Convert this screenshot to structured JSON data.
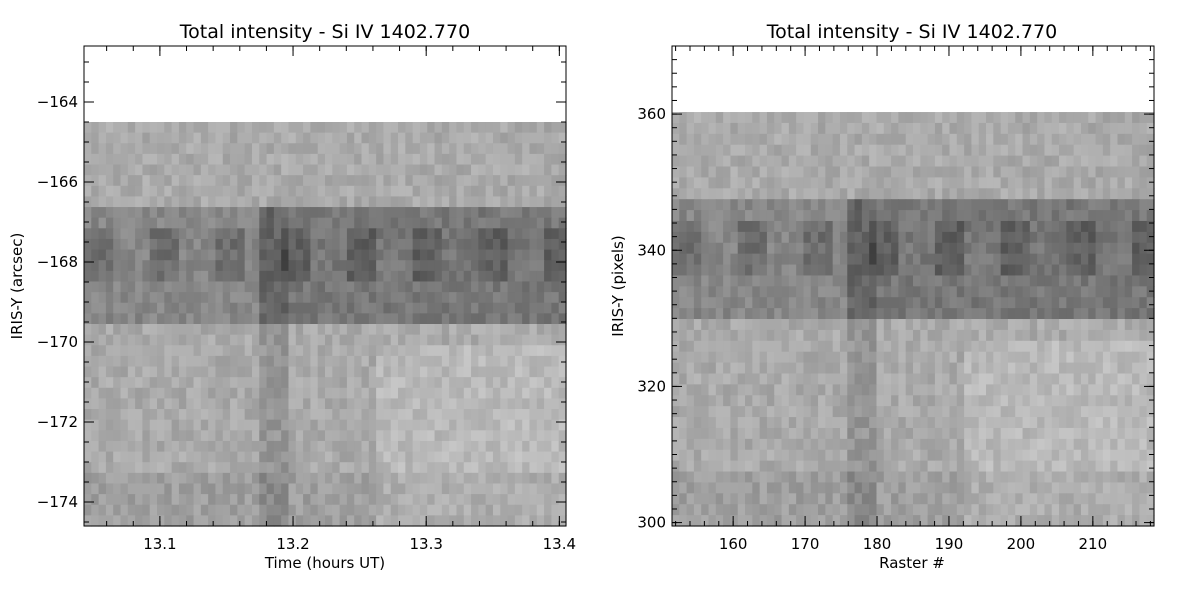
{
  "chart_data": [
    {
      "type": "heatmap",
      "title": "Total intensity - Si IV 1402.770",
      "xlabel": "Time (hours UT)",
      "ylabel": "IRIS-Y (arcsec)",
      "xlim": [
        13.043,
        13.405
      ],
      "ylim": [
        -174.6,
        -162.6
      ],
      "data_ylim": [
        -174.6,
        -164.5
      ],
      "xticks": [
        {
          "v": 13.1,
          "label": "13.1"
        },
        {
          "v": 13.2,
          "label": "13.2"
        },
        {
          "v": 13.3,
          "label": "13.3"
        },
        {
          "v": 13.4,
          "label": "13.4"
        }
      ],
      "yticks": [
        {
          "v": -164,
          "label": "−164"
        },
        {
          "v": -166,
          "label": "−166"
        },
        {
          "v": -168,
          "label": "−168"
        },
        {
          "v": -170,
          "label": "−170"
        },
        {
          "v": -172,
          "label": "−172"
        },
        {
          "v": -174,
          "label": "−174"
        }
      ],
      "colormap": "grayscale"
    },
    {
      "type": "heatmap",
      "title": "Total intensity - Si IV 1402.770",
      "xlabel": "Raster #",
      "ylabel": "IRIS-Y (pixels)",
      "xlim": [
        151.5,
        218.5
      ],
      "ylim": [
        299.5,
        370.0
      ],
      "data_ylim": [
        299.5,
        360.3
      ],
      "xticks": [
        {
          "v": 160,
          "label": "160"
        },
        {
          "v": 170,
          "label": "170"
        },
        {
          "v": 180,
          "label": "180"
        },
        {
          "v": 190,
          "label": "190"
        },
        {
          "v": 200,
          "label": "200"
        },
        {
          "v": 210,
          "label": "210"
        }
      ],
      "yticks": [
        {
          "v": 300,
          "label": "300"
        },
        {
          "v": 320,
          "label": "320"
        },
        {
          "v": 340,
          "label": "340"
        },
        {
          "v": 360,
          "label": "360"
        }
      ],
      "colormap": "grayscale"
    }
  ]
}
